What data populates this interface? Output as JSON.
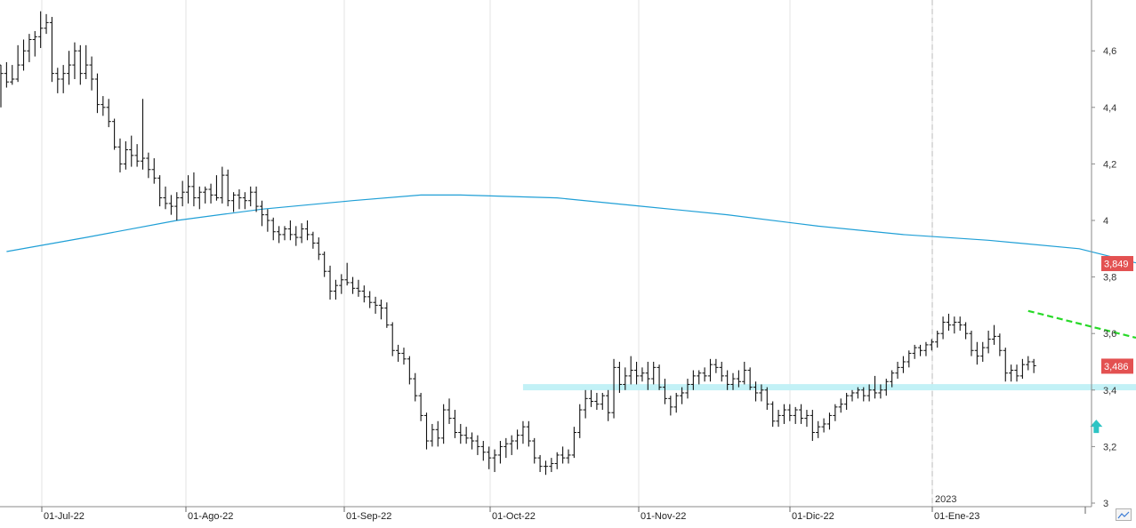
{
  "chart_data": {
    "type": "ohlc",
    "x_axis": {
      "labels": [
        "01-Jul-22",
        "01-Ago-22",
        "01-Sep-22",
        "01-Oct-22",
        "01-Nov-22",
        "01-Dic-22",
        "01-Ene-23"
      ],
      "year_marker": "2023"
    },
    "y_axis": {
      "tick_labels": [
        "3",
        "3,2",
        "3,4",
        "3,6",
        "3,8",
        "4",
        "4,2",
        "4,4",
        "4,6"
      ],
      "ylim": [
        3.0,
        4.76
      ]
    },
    "price_badge": {
      "value": "3,486",
      "color": "#e35151"
    },
    "ma_badge": {
      "value": "3,849",
      "color": "#e35151"
    },
    "moving_average": {
      "color": "#1f9fd6",
      "points": [
        [
          1.0,
          3.89
        ],
        [
          15.0,
          3.94
        ],
        [
          31.0,
          4.0
        ],
        [
          46.0,
          4.04
        ],
        [
          62.0,
          4.07
        ],
        [
          74.0,
          4.09
        ],
        [
          81.0,
          4.09
        ],
        [
          98.0,
          4.08
        ],
        [
          113.0,
          4.05
        ],
        [
          128.0,
          4.02
        ],
        [
          144.0,
          3.98
        ],
        [
          159.0,
          3.95
        ],
        [
          174.0,
          3.93
        ],
        [
          190.0,
          3.9
        ],
        [
          200.0,
          3.85
        ]
      ]
    },
    "support_band": {
      "from_day": 92,
      "to_day": 200,
      "level": 3.41,
      "color": "#bff0f5"
    },
    "resistance_line": {
      "from_day": [
        181,
        3.68
      ],
      "to_day": [
        200,
        3.585
      ],
      "color": "#27d927"
    },
    "arrow": {
      "day": 193,
      "value": 3.27,
      "color": "#2ec4c4"
    },
    "ohlc": [
      [
        0,
        4.55,
        4.55,
        4.4,
        4.52
      ],
      [
        1,
        4.52,
        4.56,
        4.47,
        4.49
      ],
      [
        2,
        4.49,
        4.55,
        4.48,
        4.5
      ],
      [
        3,
        4.5,
        4.62,
        4.49,
        4.55
      ],
      [
        4,
        4.55,
        4.64,
        4.53,
        4.6
      ],
      [
        5,
        4.6,
        4.66,
        4.56,
        4.64
      ],
      [
        6,
        4.64,
        4.67,
        4.58,
        4.65
      ],
      [
        7,
        4.65,
        4.74,
        4.61,
        4.68
      ],
      [
        8,
        4.68,
        4.73,
        4.66,
        4.7
      ],
      [
        9,
        4.7,
        4.72,
        4.49,
        4.52
      ],
      [
        10,
        4.52,
        4.54,
        4.45,
        4.5
      ],
      [
        11,
        4.5,
        4.55,
        4.45,
        4.52
      ],
      [
        12,
        4.52,
        4.6,
        4.48,
        4.55
      ],
      [
        13,
        4.55,
        4.63,
        4.5,
        4.6
      ],
      [
        14,
        4.6,
        4.62,
        4.48,
        4.52
      ],
      [
        15,
        4.52,
        4.62,
        4.5,
        4.55
      ],
      [
        16,
        4.55,
        4.58,
        4.46,
        4.5
      ],
      [
        17,
        4.5,
        4.52,
        4.38,
        4.41
      ],
      [
        18,
        4.41,
        4.44,
        4.37,
        4.4
      ],
      [
        19,
        4.4,
        4.43,
        4.33,
        4.35
      ],
      [
        20,
        4.35,
        4.36,
        4.25,
        4.26
      ],
      [
        21,
        4.26,
        4.29,
        4.17,
        4.2
      ],
      [
        22,
        4.2,
        4.28,
        4.18,
        4.25
      ],
      [
        23,
        4.25,
        4.3,
        4.19,
        4.23
      ],
      [
        24,
        4.23,
        4.27,
        4.19,
        4.21
      ],
      [
        25,
        4.21,
        4.43,
        4.18,
        4.22
      ],
      [
        26,
        4.22,
        4.24,
        4.15,
        4.18
      ],
      [
        27,
        4.18,
        4.22,
        4.13,
        4.15
      ],
      [
        28,
        4.15,
        4.16,
        4.05,
        4.08
      ],
      [
        29,
        4.08,
        4.12,
        4.04,
        4.06
      ],
      [
        30,
        4.06,
        4.09,
        4.02,
        4.05
      ],
      [
        31,
        4.05,
        4.1,
        4.0,
        4.08
      ],
      [
        32,
        4.08,
        4.14,
        4.05,
        4.1
      ],
      [
        33,
        4.1,
        4.16,
        4.06,
        4.12
      ],
      [
        34,
        4.12,
        4.17,
        4.05,
        4.08
      ],
      [
        35,
        4.08,
        4.12,
        4.04,
        4.1
      ],
      [
        36,
        4.1,
        4.12,
        4.06,
        4.11
      ],
      [
        37,
        4.11,
        4.13,
        4.06,
        4.09
      ],
      [
        38,
        4.09,
        4.16,
        4.07,
        4.08
      ],
      [
        39,
        4.08,
        4.19,
        4.06,
        4.16
      ],
      [
        40,
        4.16,
        4.18,
        4.05,
        4.07
      ],
      [
        41,
        4.07,
        4.1,
        4.03,
        4.09
      ],
      [
        42,
        4.09,
        4.11,
        4.04,
        4.08
      ],
      [
        43,
        4.08,
        4.1,
        4.04,
        4.07
      ],
      [
        44,
        4.07,
        4.12,
        4.05,
        4.1
      ],
      [
        45,
        4.1,
        4.12,
        4.03,
        4.05
      ],
      [
        46,
        4.05,
        4.07,
        3.98,
        4.02
      ],
      [
        47,
        4.02,
        4.04,
        3.96,
        4.0
      ],
      [
        48,
        4.0,
        4.01,
        3.93,
        3.96
      ],
      [
        49,
        3.96,
        3.98,
        3.92,
        3.95
      ],
      [
        50,
        3.95,
        3.98,
        3.93,
        3.97
      ],
      [
        51,
        3.97,
        4.0,
        3.93,
        3.95
      ],
      [
        52,
        3.95,
        3.98,
        3.91,
        3.94
      ],
      [
        53,
        3.94,
        3.99,
        3.92,
        3.97
      ],
      [
        54,
        3.97,
        4.0,
        3.93,
        3.95
      ],
      [
        55,
        3.95,
        3.96,
        3.9,
        3.92
      ],
      [
        56,
        3.92,
        3.94,
        3.86,
        3.88
      ],
      [
        57,
        3.88,
        3.89,
        3.8,
        3.82
      ],
      [
        58,
        3.82,
        3.84,
        3.72,
        3.75
      ],
      [
        59,
        3.75,
        3.79,
        3.72,
        3.77
      ],
      [
        60,
        3.77,
        3.81,
        3.74,
        3.79
      ],
      [
        61,
        3.79,
        3.85,
        3.77,
        3.78
      ],
      [
        62,
        3.78,
        3.8,
        3.74,
        3.76
      ],
      [
        63,
        3.76,
        3.79,
        3.73,
        3.75
      ],
      [
        64,
        3.75,
        3.77,
        3.71,
        3.73
      ],
      [
        65,
        3.73,
        3.75,
        3.69,
        3.71
      ],
      [
        66,
        3.71,
        3.73,
        3.67,
        3.7
      ],
      [
        67,
        3.7,
        3.72,
        3.65,
        3.69
      ],
      [
        68,
        3.69,
        3.71,
        3.62,
        3.63
      ],
      [
        69,
        3.63,
        3.64,
        3.52,
        3.54
      ],
      [
        70,
        3.54,
        3.56,
        3.5,
        3.53
      ],
      [
        71,
        3.53,
        3.55,
        3.49,
        3.51
      ],
      [
        72,
        3.51,
        3.52,
        3.42,
        3.44
      ],
      [
        73,
        3.44,
        3.46,
        3.36,
        3.38
      ],
      [
        74,
        3.38,
        3.39,
        3.29,
        3.31
      ],
      [
        75,
        3.31,
        3.32,
        3.19,
        3.22
      ],
      [
        76,
        3.22,
        3.28,
        3.2,
        3.26
      ],
      [
        77,
        3.26,
        3.29,
        3.2,
        3.23
      ],
      [
        78,
        3.23,
        3.35,
        3.21,
        3.33
      ],
      [
        79,
        3.33,
        3.37,
        3.28,
        3.3
      ],
      [
        80,
        3.3,
        3.33,
        3.23,
        3.25
      ],
      [
        81,
        3.25,
        3.28,
        3.21,
        3.24
      ],
      [
        82,
        3.24,
        3.27,
        3.21,
        3.23
      ],
      [
        83,
        3.23,
        3.25,
        3.19,
        3.22
      ],
      [
        84,
        3.22,
        3.24,
        3.17,
        3.2
      ],
      [
        85,
        3.2,
        3.22,
        3.15,
        3.18
      ],
      [
        86,
        3.18,
        3.2,
        3.12,
        3.16
      ],
      [
        87,
        3.16,
        3.19,
        3.11,
        3.17
      ],
      [
        88,
        3.17,
        3.22,
        3.14,
        3.2
      ],
      [
        89,
        3.2,
        3.23,
        3.16,
        3.21
      ],
      [
        90,
        3.21,
        3.24,
        3.17,
        3.22
      ],
      [
        91,
        3.22,
        3.26,
        3.19,
        3.24
      ],
      [
        92,
        3.24,
        3.29,
        3.21,
        3.27
      ],
      [
        93,
        3.27,
        3.29,
        3.2,
        3.22
      ],
      [
        94,
        3.22,
        3.23,
        3.14,
        3.16
      ],
      [
        95,
        3.16,
        3.17,
        3.11,
        3.13
      ],
      [
        96,
        3.13,
        3.15,
        3.1,
        3.13
      ],
      [
        97,
        3.13,
        3.16,
        3.11,
        3.14
      ],
      [
        98,
        3.14,
        3.18,
        3.12,
        3.17
      ],
      [
        99,
        3.17,
        3.2,
        3.14,
        3.16
      ],
      [
        100,
        3.16,
        3.19,
        3.14,
        3.17
      ],
      [
        101,
        3.17,
        3.27,
        3.16,
        3.25
      ],
      [
        102,
        3.25,
        3.35,
        3.23,
        3.33
      ],
      [
        103,
        3.33,
        3.4,
        3.3,
        3.37
      ],
      [
        104,
        3.37,
        3.4,
        3.34,
        3.36
      ],
      [
        105,
        3.36,
        3.39,
        3.33,
        3.35
      ],
      [
        106,
        3.35,
        3.39,
        3.33,
        3.38
      ],
      [
        107,
        3.38,
        3.4,
        3.29,
        3.32
      ],
      [
        108,
        3.32,
        3.51,
        3.3,
        3.48
      ],
      [
        109,
        3.48,
        3.5,
        3.39,
        3.42
      ],
      [
        110,
        3.42,
        3.48,
        3.4,
        3.45
      ],
      [
        111,
        3.45,
        3.52,
        3.42,
        3.47
      ],
      [
        112,
        3.47,
        3.5,
        3.42,
        3.45
      ],
      [
        113,
        3.45,
        3.48,
        3.43,
        3.46
      ],
      [
        114,
        3.46,
        3.5,
        3.4,
        3.44
      ],
      [
        115,
        3.44,
        3.5,
        3.42,
        3.48
      ],
      [
        116,
        3.48,
        3.49,
        3.4,
        3.41
      ],
      [
        117,
        3.41,
        3.44,
        3.35,
        3.37
      ],
      [
        118,
        3.37,
        3.38,
        3.31,
        3.34
      ],
      [
        119,
        3.34,
        3.39,
        3.32,
        3.38
      ],
      [
        120,
        3.38,
        3.41,
        3.35,
        3.39
      ],
      [
        121,
        3.39,
        3.44,
        3.37,
        3.42
      ],
      [
        122,
        3.42,
        3.47,
        3.4,
        3.45
      ],
      [
        123,
        3.45,
        3.47,
        3.42,
        3.46
      ],
      [
        124,
        3.46,
        3.48,
        3.43,
        3.45
      ],
      [
        125,
        3.45,
        3.51,
        3.43,
        3.49
      ],
      [
        126,
        3.49,
        3.51,
        3.46,
        3.48
      ],
      [
        127,
        3.48,
        3.5,
        3.43,
        3.45
      ],
      [
        128,
        3.45,
        3.47,
        3.4,
        3.42
      ],
      [
        129,
        3.42,
        3.46,
        3.4,
        3.44
      ],
      [
        130,
        3.44,
        3.47,
        3.41,
        3.43
      ],
      [
        131,
        3.43,
        3.5,
        3.42,
        3.47
      ],
      [
        132,
        3.47,
        3.48,
        3.4,
        3.41
      ],
      [
        133,
        3.41,
        3.43,
        3.36,
        3.39
      ],
      [
        134,
        3.39,
        3.42,
        3.36,
        3.4
      ],
      [
        135,
        3.4,
        3.41,
        3.33,
        3.35
      ],
      [
        136,
        3.35,
        3.36,
        3.27,
        3.29
      ],
      [
        137,
        3.29,
        3.33,
        3.27,
        3.31
      ],
      [
        138,
        3.31,
        3.35,
        3.28,
        3.33
      ],
      [
        139,
        3.33,
        3.35,
        3.29,
        3.31
      ],
      [
        140,
        3.31,
        3.34,
        3.28,
        3.33
      ],
      [
        141,
        3.33,
        3.35,
        3.28,
        3.3
      ],
      [
        142,
        3.3,
        3.33,
        3.27,
        3.31
      ],
      [
        143,
        3.31,
        3.33,
        3.22,
        3.25
      ],
      [
        144,
        3.25,
        3.29,
        3.23,
        3.27
      ],
      [
        145,
        3.27,
        3.3,
        3.25,
        3.28
      ],
      [
        146,
        3.28,
        3.32,
        3.26,
        3.31
      ],
      [
        147,
        3.31,
        3.35,
        3.29,
        3.34
      ],
      [
        148,
        3.34,
        3.37,
        3.32,
        3.35
      ],
      [
        149,
        3.35,
        3.39,
        3.33,
        3.38
      ],
      [
        150,
        3.38,
        3.4,
        3.36,
        3.39
      ],
      [
        151,
        3.39,
        3.41,
        3.37,
        3.4
      ],
      [
        152,
        3.4,
        3.41,
        3.36,
        3.38
      ],
      [
        153,
        3.38,
        3.42,
        3.36,
        3.4
      ],
      [
        154,
        3.4,
        3.45,
        3.37,
        3.39
      ],
      [
        155,
        3.39,
        3.42,
        3.37,
        3.4
      ],
      [
        156,
        3.4,
        3.44,
        3.38,
        3.43
      ],
      [
        157,
        3.43,
        3.47,
        3.41,
        3.46
      ],
      [
        158,
        3.46,
        3.5,
        3.44,
        3.48
      ],
      [
        159,
        3.48,
        3.52,
        3.46,
        3.5
      ],
      [
        160,
        3.5,
        3.54,
        3.48,
        3.53
      ],
      [
        161,
        3.53,
        3.56,
        3.51,
        3.55
      ],
      [
        162,
        3.55,
        3.56,
        3.52,
        3.54
      ],
      [
        163,
        3.54,
        3.57,
        3.52,
        3.56
      ],
      [
        164,
        3.56,
        3.58,
        3.54,
        3.57
      ],
      [
        165,
        3.57,
        3.61,
        3.55,
        3.6
      ],
      [
        166,
        3.6,
        3.66,
        3.58,
        3.64
      ],
      [
        167,
        3.64,
        3.67,
        3.61,
        3.63
      ],
      [
        168,
        3.63,
        3.66,
        3.6,
        3.64
      ],
      [
        169,
        3.64,
        3.66,
        3.61,
        3.63
      ],
      [
        170,
        3.63,
        3.64,
        3.58,
        3.6
      ],
      [
        171,
        3.6,
        3.61,
        3.52,
        3.54
      ],
      [
        172,
        3.54,
        3.57,
        3.49,
        3.52
      ],
      [
        173,
        3.52,
        3.57,
        3.5,
        3.55
      ],
      [
        174,
        3.55,
        3.61,
        3.53,
        3.58
      ],
      [
        175,
        3.58,
        3.63,
        3.56,
        3.59
      ],
      [
        176,
        3.59,
        3.6,
        3.52,
        3.54
      ],
      [
        177,
        3.54,
        3.55,
        3.43,
        3.46
      ],
      [
        178,
        3.46,
        3.49,
        3.43,
        3.47
      ],
      [
        179,
        3.47,
        3.49,
        3.43,
        3.45
      ],
      [
        180,
        3.45,
        3.51,
        3.44,
        3.49
      ],
      [
        181,
        3.49,
        3.52,
        3.47,
        3.5
      ],
      [
        182,
        3.5,
        3.51,
        3.46,
        3.486
      ]
    ]
  }
}
